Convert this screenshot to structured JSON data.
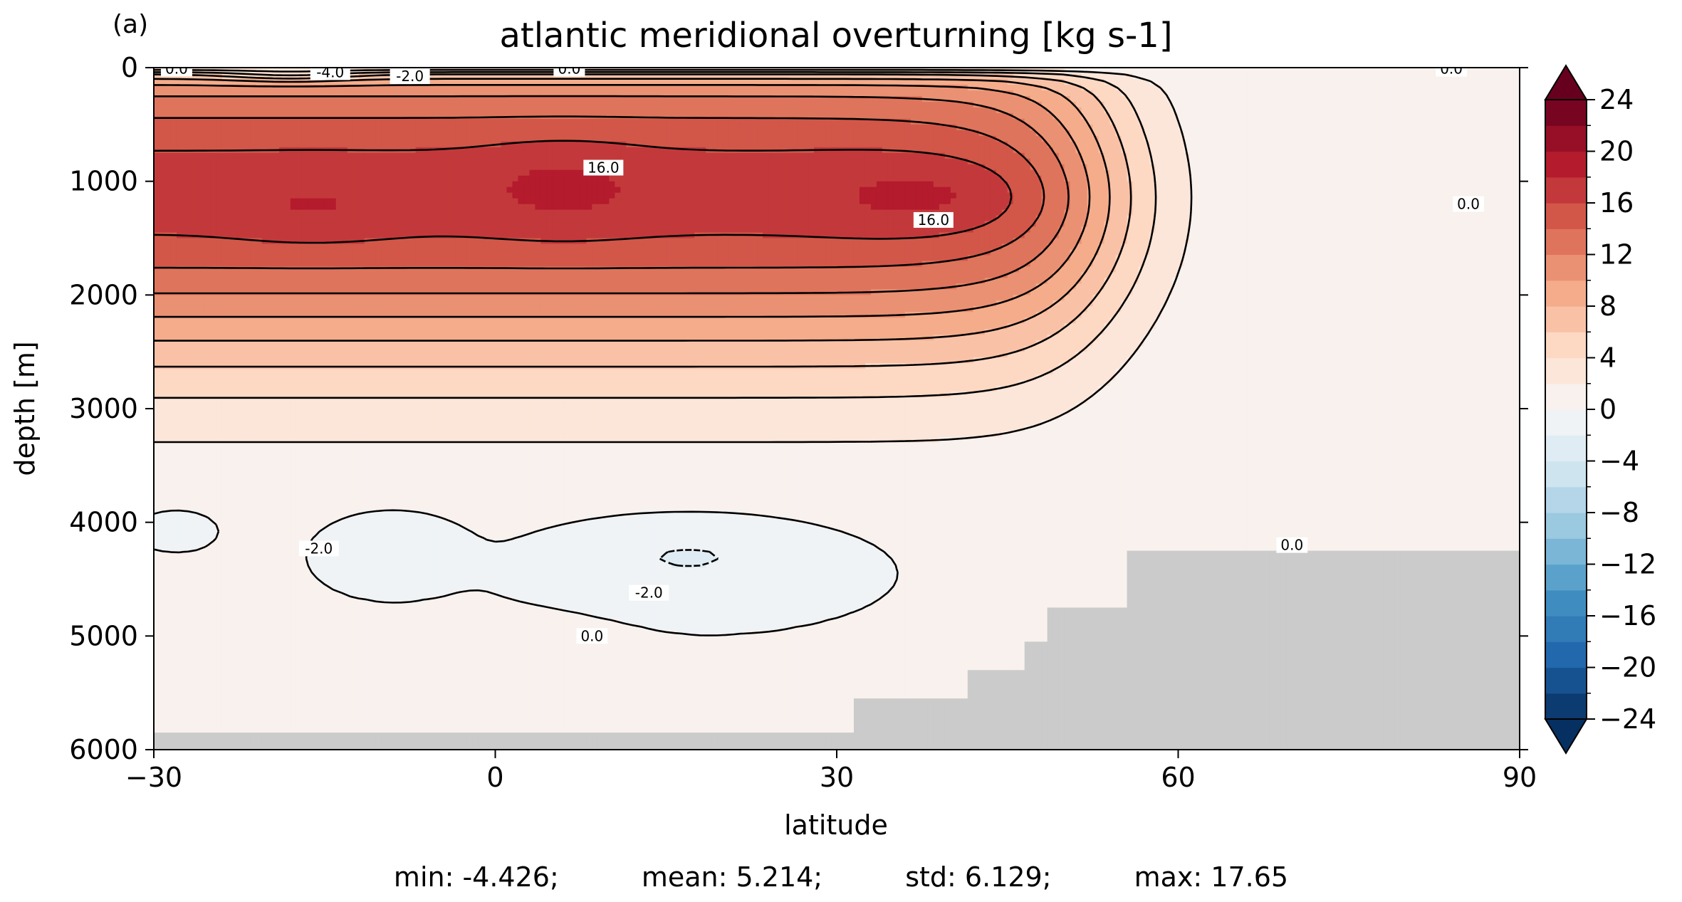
{
  "panel_label": "(a)",
  "chart_data": {
    "type": "heatmap",
    "subtype": "filled-contour",
    "title": "atlantic meridional overturning [kg s-1]",
    "xlabel": "latitude",
    "ylabel": "depth [m]",
    "xlim": [
      -30,
      90
    ],
    "ylim": [
      6000,
      0
    ],
    "xticks": [
      -30,
      0,
      30,
      60,
      90
    ],
    "xtick_labels": [
      "−30",
      "0",
      "30",
      "60",
      "90"
    ],
    "yticks": [
      0,
      1000,
      2000,
      3000,
      4000,
      5000,
      6000
    ],
    "ytick_labels": [
      "0",
      "1000",
      "2000",
      "3000",
      "4000",
      "5000",
      "6000"
    ],
    "colormap": "RdBu_r",
    "levels": [
      -24,
      -22,
      -20,
      -18,
      -16,
      -14,
      -12,
      -10,
      -8,
      -6,
      -4,
      -2,
      0,
      2,
      4,
      6,
      8,
      10,
      12,
      14,
      16,
      18,
      20,
      22,
      24
    ],
    "colorbar_ticks": [
      24,
      20,
      16,
      12,
      8,
      4,
      0,
      -4,
      -8,
      -12,
      -16,
      -20,
      -24
    ],
    "colorbar_tick_labels": [
      "24",
      "20",
      "16",
      "12",
      "8",
      "4",
      "0",
      "−4",
      "−8",
      "−12",
      "−16",
      "−20",
      "−24"
    ],
    "colorbar_extend": "both",
    "land_color": "#cbcbcb",
    "contour_labels": [
      {
        "text": "0.0",
        "x": -28,
        "y": 10
      },
      {
        "text": "-4.0",
        "x": -14.5,
        "y": 40
      },
      {
        "text": "-2.0",
        "x": -7.5,
        "y": 75
      },
      {
        "text": "0.0",
        "x": 6.5,
        "y": 10
      },
      {
        "text": "16.0",
        "x": 9.5,
        "y": 880
      },
      {
        "text": "16.0",
        "x": 38.5,
        "y": 1340
      },
      {
        "text": "0.0",
        "x": 84,
        "y": 10
      },
      {
        "text": "0.0",
        "x": 85.5,
        "y": 1200
      },
      {
        "text": "-2.0",
        "x": -15.5,
        "y": 4230
      },
      {
        "text": "-2.0",
        "x": 13.5,
        "y": 4620
      },
      {
        "text": "0.0",
        "x": 8.5,
        "y": 5000
      },
      {
        "text": "0.0",
        "x": 70,
        "y": 4200
      }
    ],
    "stats": {
      "min": -4.426,
      "mean": 5.214,
      "std": 6.129,
      "max": 17.65
    }
  },
  "stats_text": {
    "min": "min: -4.426;",
    "mean": "mean: 5.214;",
    "std": "std: 6.129;",
    "max": "max: 17.65"
  }
}
